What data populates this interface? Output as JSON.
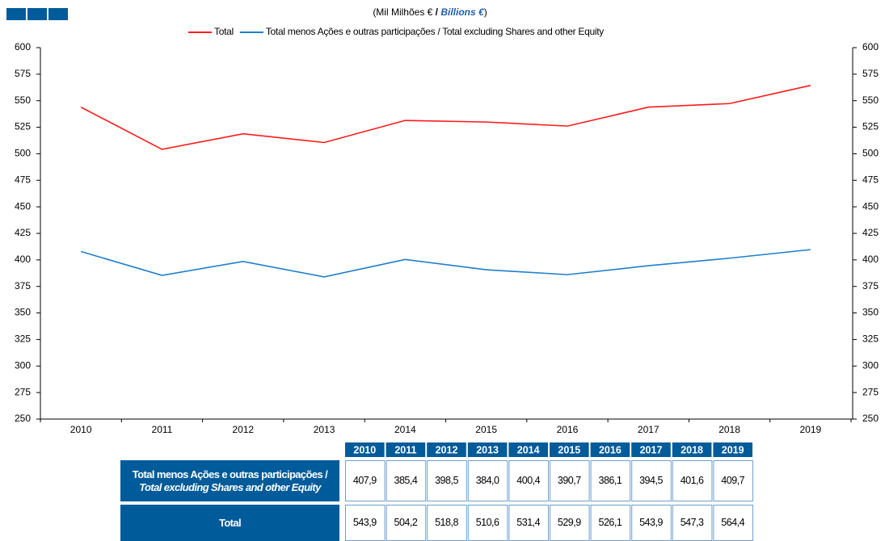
{
  "chart_data": {
    "type": "line",
    "title_parts": [
      "(Mil Milhões € ",
      "/ ",
      "Billions €",
      ")"
    ],
    "categories": [
      "2010",
      "2011",
      "2012",
      "2013",
      "2014",
      "2015",
      "2016",
      "2017",
      "2018",
      "2019"
    ],
    "series": [
      {
        "name": "Total",
        "color": "#ff1a1a",
        "values": [
          543.9,
          504.2,
          518.8,
          510.6,
          531.4,
          529.9,
          526.1,
          543.9,
          547.3,
          564.4
        ],
        "value_labels": [
          "543,9",
          "504,2",
          "518,8",
          "510,6",
          "531,4",
          "529,9",
          "526,1",
          "543,9",
          "547,3",
          "564,4"
        ]
      },
      {
        "name": "Total menos Ações e outras participações / Total excluding Shares and other Equity",
        "color": "#1f7fcc",
        "values": [
          407.9,
          385.4,
          398.5,
          384.0,
          400.4,
          390.7,
          386.1,
          394.5,
          401.6,
          409.7
        ],
        "value_labels": [
          "407,9",
          "385,4",
          "398,5",
          "384,0",
          "400,4",
          "390,7",
          "386,1",
          "394,5",
          "401,6",
          "409,7"
        ]
      }
    ],
    "ylim": [
      250,
      600
    ],
    "yticks": [
      250,
      275,
      300,
      325,
      350,
      375,
      400,
      425,
      450,
      475,
      500,
      525,
      550,
      575,
      600
    ],
    "y2lim": [
      250,
      600
    ],
    "y2ticks": [
      250,
      275,
      300,
      325,
      350,
      375,
      400,
      425,
      450,
      475,
      500,
      525,
      550,
      575,
      600
    ],
    "legend": "top",
    "table": {
      "row_labels": [
        [
          "Total menos Ações e outras participações / ",
          "Total excluding Shares and other Equity"
        ],
        [
          "Total"
        ]
      ]
    }
  }
}
